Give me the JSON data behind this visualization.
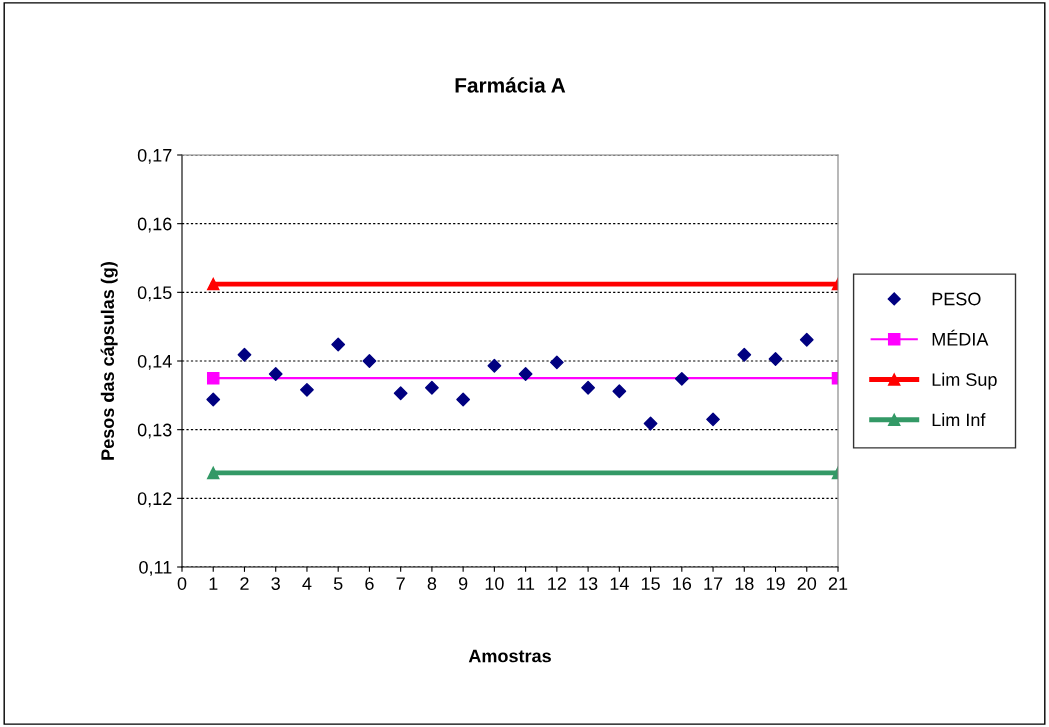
{
  "chart_data": {
    "type": "scatter",
    "title": "Farmácia A",
    "xlabel": "Amostras",
    "ylabel": "Pesos das cápsulas (g)",
    "xlim": [
      0,
      21
    ],
    "xticks": [
      0,
      1,
      2,
      3,
      4,
      5,
      6,
      7,
      8,
      9,
      10,
      11,
      12,
      13,
      14,
      15,
      16,
      17,
      18,
      19,
      20,
      21
    ],
    "ylim": [
      0.11,
      0.17
    ],
    "yticks": [
      {
        "value": 0.11,
        "label": "0,11"
      },
      {
        "value": 0.12,
        "label": "0,12"
      },
      {
        "value": 0.13,
        "label": "0,13"
      },
      {
        "value": 0.14,
        "label": "0,14"
      },
      {
        "value": 0.15,
        "label": "0,15"
      },
      {
        "value": 0.16,
        "label": "0,16"
      },
      {
        "value": 0.17,
        "label": "0,17"
      }
    ],
    "grid": "y",
    "legend": "right",
    "series": [
      {
        "name": "PESO",
        "marker": "diamond",
        "color": "#000080",
        "x": [
          1,
          2,
          3,
          4,
          5,
          6,
          7,
          8,
          9,
          10,
          11,
          12,
          13,
          14,
          15,
          16,
          17,
          18,
          19,
          20
        ],
        "values": [
          0.1344,
          0.1409,
          0.1381,
          0.1358,
          0.1424,
          0.14,
          0.1353,
          0.1361,
          0.1344,
          0.1393,
          0.1381,
          0.1398,
          0.1361,
          0.1356,
          0.1309,
          0.1374,
          0.1315,
          0.1409,
          0.1403,
          0.1431
        ]
      },
      {
        "name": "MÉDIA",
        "type": "line",
        "marker": "square",
        "color": "#ff00ff",
        "x": [
          1,
          21
        ],
        "values": [
          0.1375,
          0.1375
        ]
      },
      {
        "name": "Lim Sup",
        "type": "line",
        "marker": "triangle",
        "color": "#ff0000",
        "x": [
          1,
          21
        ],
        "values": [
          0.1512,
          0.1512
        ]
      },
      {
        "name": "Lim Inf",
        "type": "line",
        "marker": "triangle",
        "color": "#339966",
        "x": [
          1,
          21
        ],
        "values": [
          0.1237,
          0.1237
        ]
      }
    ]
  }
}
